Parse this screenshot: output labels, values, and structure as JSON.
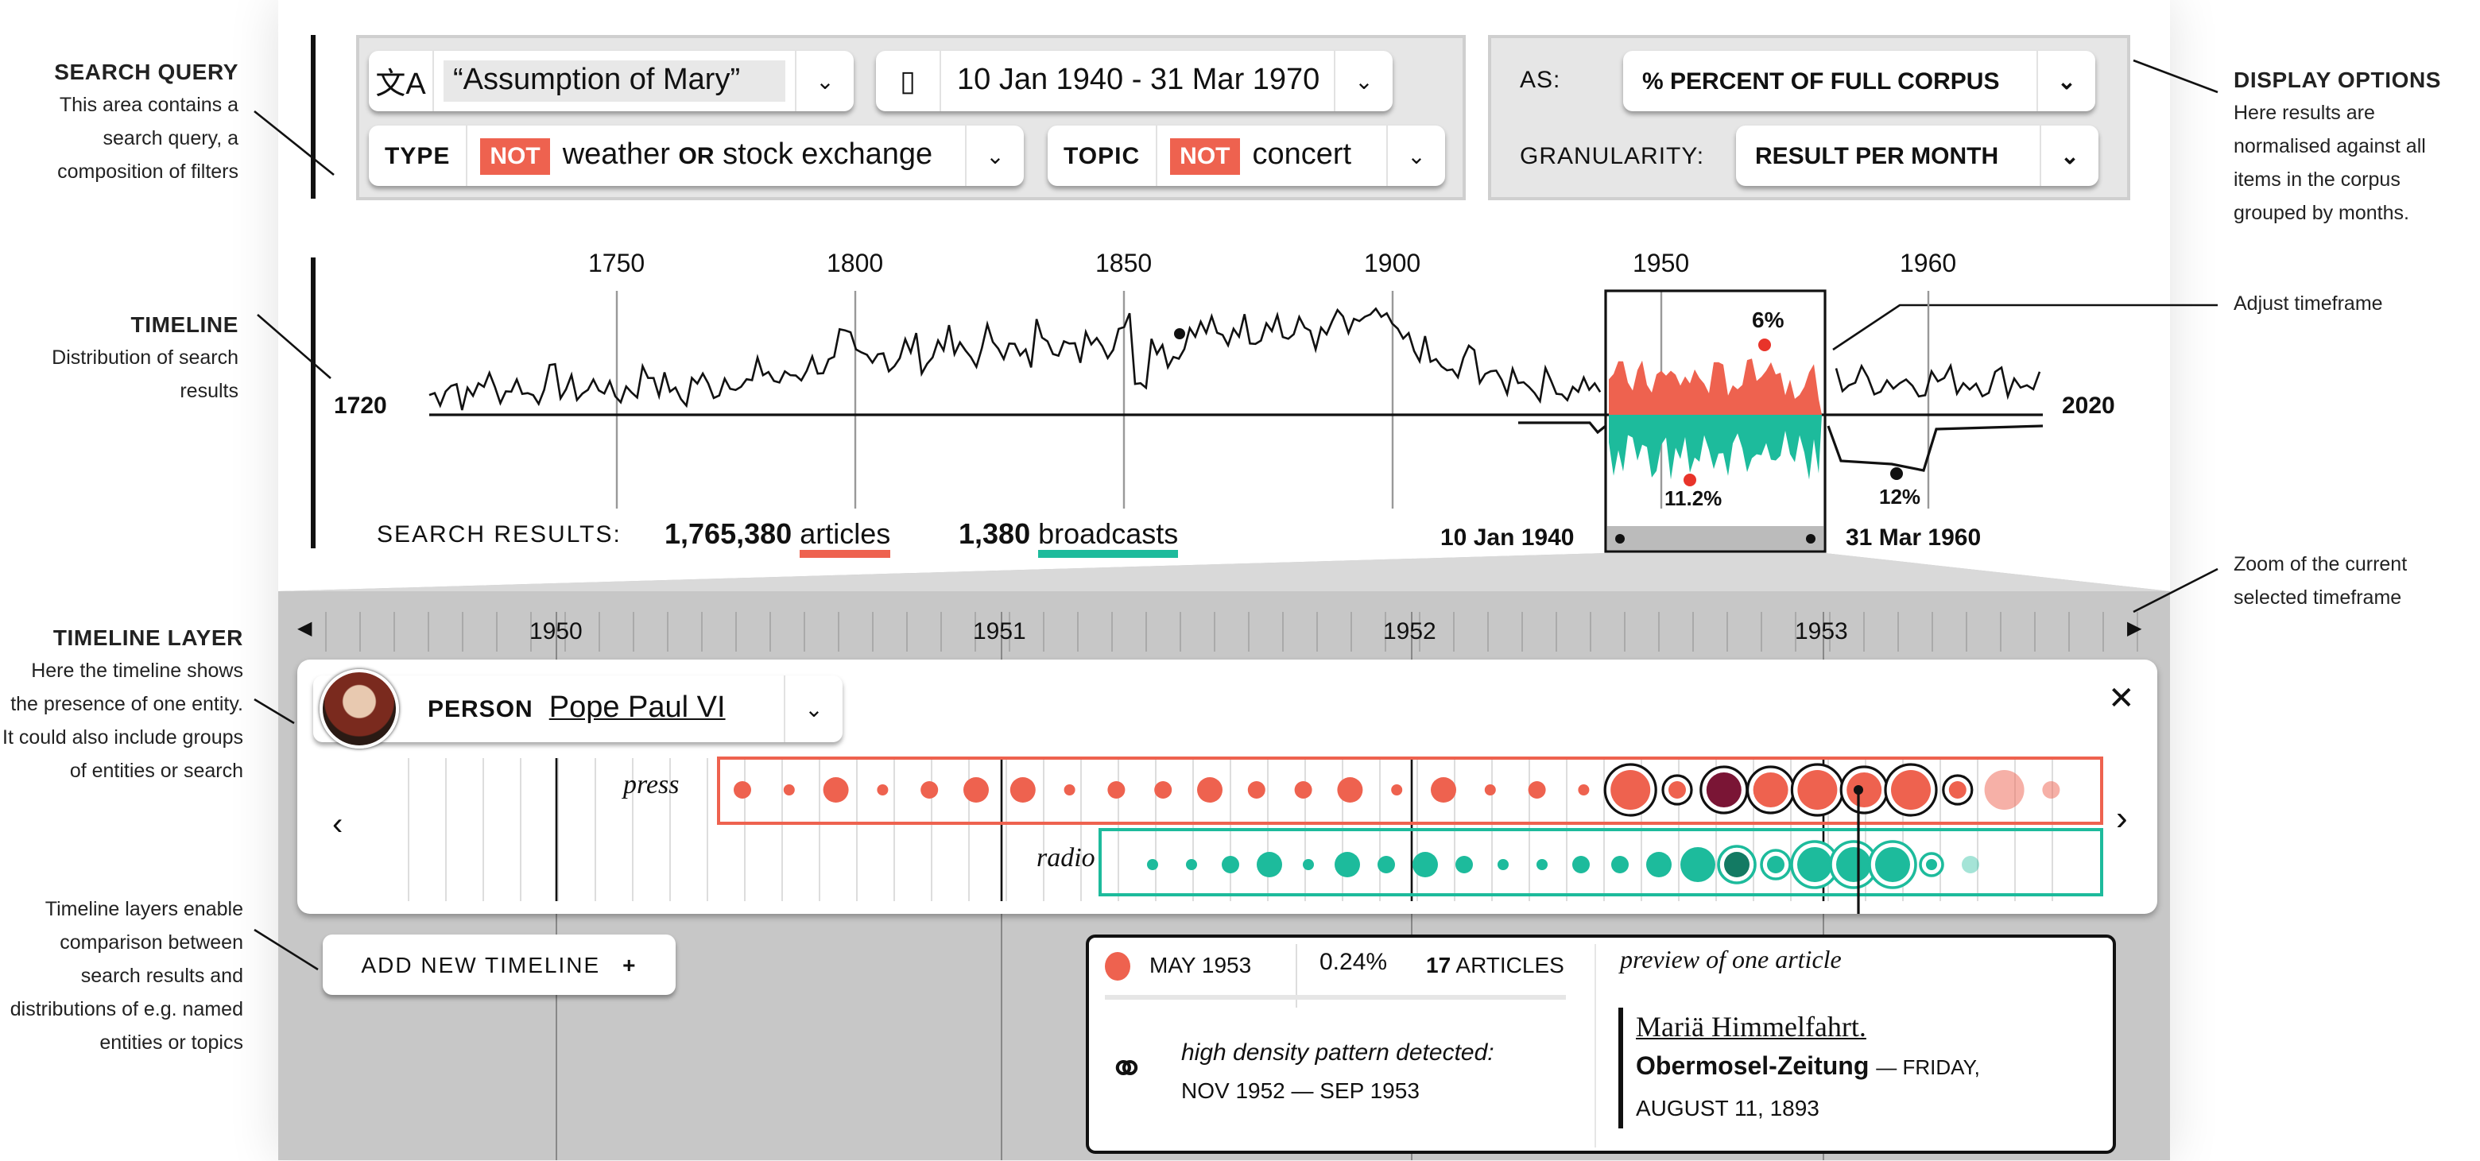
{
  "annotations": {
    "search_query": {
      "title": "SEARCH QUERY",
      "text": "This area contains a search query, a composition of filters"
    },
    "timeline": {
      "title": "TIMELINE",
      "text": "Distribution of search results"
    },
    "timeline_layer": {
      "title": "TIMELINE LAYER",
      "text": "Here the timeline shows the presence of one entity. It could also include groups of entities or search"
    },
    "timeline_layers": {
      "text": "Timeline layers enable comparison between search results and distributions of e.g. named entities or topics"
    },
    "display_options": {
      "title": "DISPLAY OPTIONS",
      "text": "Here results are normalised against all items in the corpus grouped by months."
    },
    "adjust": "Adjust timeframe",
    "zoom": "Zoom of the current selected timeframe"
  },
  "search": {
    "query": "“Assumption of Mary”",
    "date_range": "10 Jan 1940 - 31 Mar 1970",
    "type_label": "TYPE",
    "type_not": "NOT",
    "type_a": "weather",
    "type_or": "OR",
    "type_b": "stock exchange",
    "topic_label": "TOPIC",
    "topic_not": "NOT",
    "topic_value": "concert"
  },
  "display": {
    "as_label": "AS:",
    "as_value": "% PERCENT OF FULL CORPUS",
    "gran_label": "GRANULARITY:",
    "gran_value": "RESULT PER MONTH"
  },
  "timeline": {
    "start": "1720",
    "end": "2020",
    "ticks": [
      "1750",
      "1800",
      "1850",
      "1900",
      "1950",
      "1960"
    ],
    "peak_articles": "6%",
    "peak_broadcasts": "11.2%",
    "peak_broadcasts2": "12%",
    "results_label": "SEARCH RESULTS:",
    "articles_count": "1,765,380",
    "articles_label": "articles",
    "broadcasts_count": "1,380",
    "broadcasts_label": "broadcasts",
    "sel_start": "10 Jan 1940",
    "sel_end": "31 Mar 1960",
    "series": [
      3,
      6,
      2,
      7,
      4,
      6,
      3,
      8,
      5,
      4,
      6,
      3,
      5,
      9,
      6,
      2,
      7,
      5,
      8,
      6,
      10,
      7,
      9,
      12,
      11,
      18,
      14,
      16,
      12,
      17,
      13,
      19,
      15,
      14,
      20,
      16,
      13,
      22,
      18,
      15,
      21,
      17,
      24,
      9,
      18,
      14,
      20,
      22,
      19,
      23,
      21,
      25,
      20,
      22,
      19,
      24,
      21,
      26,
      23,
      18,
      16,
      12,
      8,
      14,
      10,
      6,
      9,
      5,
      7,
      4,
      6,
      3
    ]
  },
  "zoom": {
    "ticks": [
      "1950",
      "1951",
      "1952",
      "1953"
    ]
  },
  "layer": {
    "type": "PERSON",
    "entity": "Pope Paul VI",
    "press_label": "press",
    "radio_label": "radio",
    "press": [
      2,
      1,
      3,
      1,
      2,
      3,
      3,
      1,
      2,
      2,
      3,
      2,
      2,
      3,
      1,
      3,
      1,
      2,
      1,
      5,
      2,
      4,
      4,
      5,
      4,
      5,
      2,
      5,
      2
    ],
    "radio": [
      1,
      1,
      2,
      3,
      1,
      3,
      2,
      3,
      2,
      1,
      1,
      2,
      2,
      3,
      4,
      3,
      2,
      4,
      4,
      4,
      1,
      2
    ],
    "add_button": "ADD NEW TIMELINE",
    "add_icon": "+"
  },
  "tooltip": {
    "month": "MAY 1953",
    "percent": "0.24%",
    "count": "17",
    "count_label": "ARTICLES",
    "pattern": "high density pattern detected:",
    "pattern_range": "NOV 1952 — SEP 1953",
    "preview_label": "preview of one article",
    "article_title": "Mariä Himmelfahrt.",
    "newspaper": "Obermosel-Zeitung",
    "date_prefix": "— FRIDAY,",
    "date": "AUGUST 11, 1893"
  },
  "colors": {
    "articles": "#ee624f",
    "broadcasts": "#1dbb9c",
    "highlight": "#7a1535"
  }
}
